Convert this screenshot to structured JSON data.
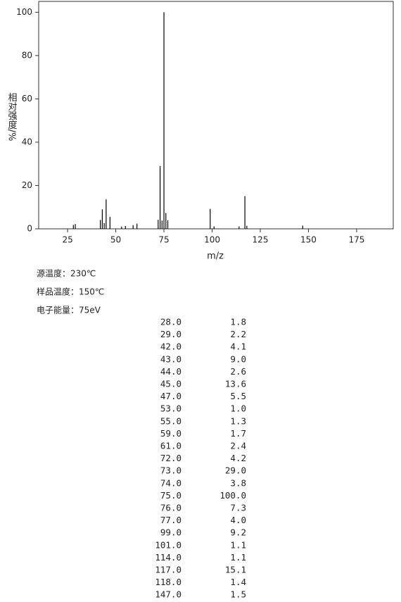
{
  "chart_data": {
    "type": "stem",
    "x_label": "m/z",
    "y_label": "相对强度/%",
    "x": [
      28,
      29,
      42,
      43,
      44,
      45,
      47,
      53,
      55,
      59,
      61,
      72,
      73,
      74,
      75,
      76,
      77,
      99,
      101,
      114,
      117,
      118,
      147
    ],
    "values": [
      1.8,
      2.2,
      4.1,
      9.0,
      2.6,
      13.6,
      5.5,
      1.0,
      1.3,
      1.7,
      2.4,
      4.2,
      29.0,
      3.8,
      100.0,
      7.3,
      4.0,
      9.2,
      1.1,
      1.1,
      15.1,
      1.4,
      1.5
    ],
    "x_labels": [
      "28.0",
      "29.0",
      "42.0",
      "43.0",
      "44.0",
      "45.0",
      "47.0",
      "53.0",
      "55.0",
      "59.0",
      "61.0",
      "72.0",
      "73.0",
      "74.0",
      "75.0",
      "76.0",
      "77.0",
      "99.0",
      "101.0",
      "114.0",
      "117.0",
      "118.0",
      "147.0"
    ],
    "value_labels": [
      "1.8",
      "2.2",
      "4.1",
      "9.0",
      "2.6",
      "13.6",
      "5.5",
      "1.0",
      "1.3",
      "1.7",
      "2.4",
      "4.2",
      "29.0",
      "3.8",
      "100.0",
      "7.3",
      "4.0",
      "9.2",
      "1.1",
      "1.1",
      "15.1",
      "1.4",
      "1.5"
    ],
    "color": "#000000",
    "xlim": [
      10,
      194
    ],
    "xticks": [
      25,
      50,
      75,
      100,
      125,
      150,
      175
    ],
    "ylim": [
      0,
      105
    ],
    "yticks": [
      0,
      20,
      40,
      60,
      80,
      100
    ]
  },
  "conditions": [
    "源温度：230℃",
    "样品温度：150℃",
    "电子能量：75eV"
  ]
}
